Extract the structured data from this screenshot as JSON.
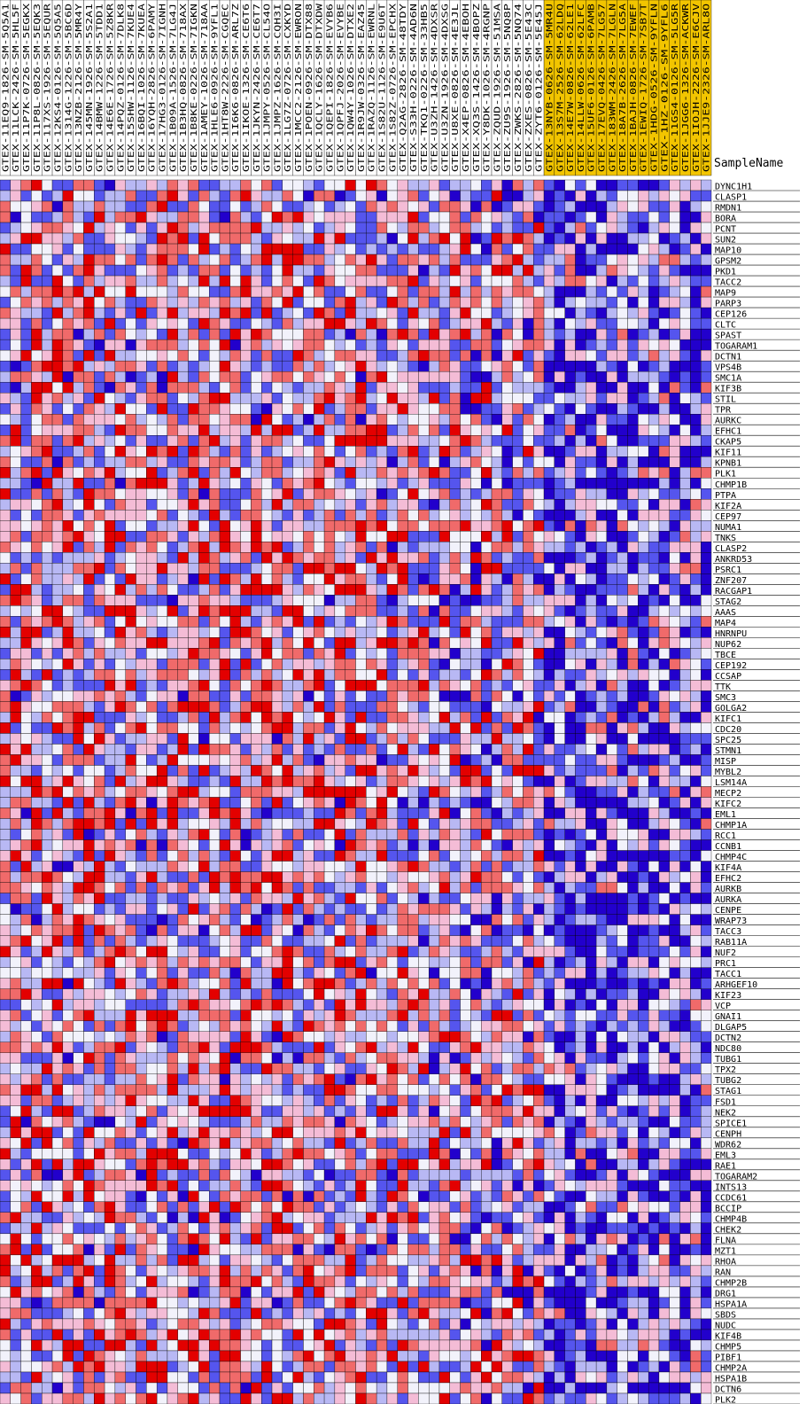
{
  "chart_data": {
    "type": "heatmap",
    "column_header_title": "SampleName",
    "columns": [
      "GTEX-11EQ9-1826-SM-5Q5A1",
      "GTEX-11LCK-2426-SM-5HL5F",
      "GTEX-11P7K-0726-SM-5EGKX",
      "GTEX-11P8L-0826-SM-5EQK3",
      "GTEX-117XS-1926-SM-5EQUR",
      "GTEX-12KS4-0126-SM-5Q5A5",
      "GTEX-1314G-1226-SM-5BC6D",
      "GTEX-13NZB-2126-SM-5MR4Y",
      "GTEX-145MN-1926-SM-5S2A1",
      "GTEX-14BMW-1226-SM-5TDD1",
      "GTEX-14E6E-1726-SM-5Z8KR",
      "GTEX-14PQZ-0126-SM-7DLK8",
      "GTEX-15SHW-1126-SM-7KUE4",
      "GTEX-16BQI-1026-SM-7KUEA",
      "GTEX-16YQH-2826-SM-6PAMY",
      "GTEX-17HG3-0126-SM-7IGNH",
      "GTEX-1B09A-1526-SM-7LG4J",
      "GTEX-1B3HQ-0826-SM-718AX",
      "GTEX-1B8KE-0226-SM-7IGKN",
      "GTEX-1AMEY-1026-SM-718AA",
      "GTEX-1HLE6-0926-SM-9YFL1",
      "GTEX-1HT8W-2226-SM-CGQEC",
      "GTEX-1I6K6-0826-SM-ARL7Z",
      "GTEX-1IKOE-1326-SM-CE6T6",
      "GTEX-1JKYN-2426-SM-CE6T7",
      "GTEX-1JMPY-0526-SM-CL54O",
      "GTEX-1JMPZ-1626-SM-CQH3I",
      "GTEX-1LG7Z-0726-SM-CXKYD",
      "GTEX-1MCC2-2126-SM-EWRON",
      "GTEX-1POEN-0926-SM-DTX88",
      "GTEX-1QCLY-1626-SM-DTXDW",
      "GTEX-1QEPI-1826-SM-EVYB6",
      "GTEX-1QPFJ-2026-SM-EVYBE",
      "GTEX-1QW4Y-1026-SM-DTXE2",
      "GTEX-1R9JW-0326-SM-EAZ45",
      "GTEX-1RAZQ-1126-SM-EWRNL",
      "GTEX-1S82U-1126-SM-E9U6T",
      "GTEX-1S82Z-0726-SM-EPCHX",
      "GTEX-Q2AG-2826-SM-48TDY",
      "GTEX-S33H-0226-SM-4AD6N",
      "GTEX-TKQ1-0226-SM-33HB5",
      "GTEX-U3ZH-1426-SM-4DXSR",
      "GTEX-U3ZN-1926-SM-4DXSG",
      "GTEX-U8XE-0826-SM-4E3JL",
      "GTEX-X4EP-0826-SM-4EBOH",
      "GTEX-XQ3S-1426-SM-4BOPZ",
      "GTEX-Y8DK-1026-SM-4RGNP",
      "GTEX-ZQUD-1926-SM-51MSA",
      "GTEX-ZU9S-1926-SM-5NQ8P",
      "GTEX-ZWKS-2826-SM-5NQ74",
      "GTEX-ZXES-0826-SM-5E43C",
      "GTEX-ZYT6-0126-SM-5E45J",
      "GTEX-13NYB-0626-SM-5MR4U",
      "GTEX-13S7M-2526-SM-62LDQ",
      "GTEX-14E7W-0826-SM-62LE1",
      "GTEX-14LLW-0626-SM-62LFC",
      "GTEX-15UF6-0126-SM-6PAMB",
      "GTEX-17EVQ-0426-SM-7LG57",
      "GTEX-183WM-2426-SM-7LGLN",
      "GTEX-18A7B-2626-SM-7LG5A",
      "GTEX-1BAJH-0826-SM-7EWEF",
      "GTEX-1EWIQ-1726-SM-7SB7T",
      "GTEX-1HDG-0526-SM-9YFLN",
      "GTEX-1HZ-0126-SM-9YFL6",
      "GTEX-11GS4-0126-SM-5LG5R",
      "GTEX-1JGG6-1326-SM-ACKWR",
      "GTEX-1IOJH-2226-SM-E6CJV",
      "GTEX-1JJE9-2326-SM-ARL8O"
    ],
    "highlighted_columns_from_index": 52,
    "rows": [
      "DYNC1H1",
      "CLASP1",
      "RMDN1",
      "BORA",
      "PCNT",
      "SUN2",
      "MAP10",
      "GPSM2",
      "PKD1",
      "TACC2",
      "MAP9",
      "PARP3",
      "CEP126",
      "CLTC",
      "SPAST",
      "TOGARAM1",
      "DCTN1",
      "VPS4B",
      "SMC1A",
      "KIF3B",
      "STIL",
      "TPR",
      "AURKC",
      "EFHC1",
      "CKAP5",
      "KIF11",
      "KPNB1",
      "PLK1",
      "CHMP1B",
      "PTPA",
      "KIF2A",
      "CEP97",
      "NUMA1",
      "TNKS",
      "CLASP2",
      "ANKRD53",
      "PSRC1",
      "ZNF207",
      "RACGAP1",
      "STAG2",
      "AAAS",
      "MAP4",
      "HNRNPU",
      "NUP62",
      "TBCE",
      "CEP192",
      "CCSAP",
      "TTK",
      "SMC3",
      "GOLGA2",
      "KIFC1",
      "CDC20",
      "SPC25",
      "STMN1",
      "MISP",
      "MYBL2",
      "LSM14A",
      "MECP2",
      "KIFC2",
      "EML1",
      "CHMP1A",
      "RCC1",
      "CCNB1",
      "CHMP4C",
      "KIF4A",
      "EFHC2",
      "AURKB",
      "AURKA",
      "CENPE",
      "WRAP73",
      "TACC3",
      "RAB11A",
      "NUF2",
      "PRC1",
      "TACC1",
      "ARHGEF10",
      "KIF23",
      "VCP",
      "GNAI1",
      "DLGAP5",
      "DCTN2",
      "NDC80",
      "TUBG1",
      "TPX2",
      "TUBG2",
      "STAG1",
      "FSD1",
      "NEK2",
      "SPICE1",
      "CENPH",
      "WDR62",
      "EML3",
      "RAE1",
      "TOGARAM2",
      "INTS13",
      "CCDC61",
      "BCCIP",
      "CHMP4B",
      "CHEK2",
      "FLNA",
      "MZT1",
      "RHOA",
      "RAN",
      "CHMP2B",
      "DRG1",
      "HSPA1A",
      "SBDS",
      "NUDC",
      "KIF4B",
      "CHMP5",
      "PIBF1",
      "CHMP2A",
      "HSPA1B",
      "DCTN6",
      "PLK2"
    ],
    "value_range": [
      -1,
      1
    ],
    "colors": {
      "low": "#0000cc",
      "mid": "#ffffff",
      "high": "#ee0000",
      "highlight_header": "#f2c500"
    },
    "values_seed": 7331
  }
}
